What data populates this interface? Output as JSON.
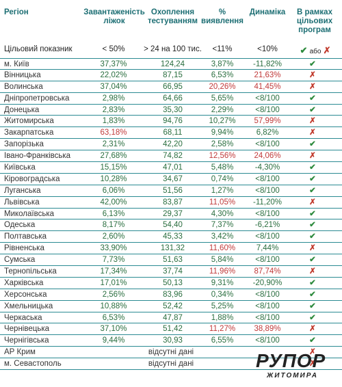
{
  "header": {
    "region": "Регіон",
    "beds_line1": "Завантаженість",
    "beds_line2": "ліжок",
    "test_line1": "Охоплення",
    "test_line2": "тестуванням",
    "pct_line1": "%",
    "pct_line2": "виявлення",
    "dyn": "Динаміка",
    "prog_line1": "В рамках",
    "prog_line2": "цільових",
    "prog_line3": "програм"
  },
  "target": {
    "label": "Цільовий показник",
    "beds": "< 50%",
    "test": "> 24 на 100 тис.",
    "pct": "<11%",
    "dyn": "<10%",
    "check": "✔",
    "or": "або",
    "cross": "✗"
  },
  "colors": {
    "accent": "#1c6e73",
    "good": "#2e8b3e",
    "bad": "#c0392b"
  },
  "rows": [
    {
      "region": "м. Київ",
      "beds": "37,37%",
      "test": "124,24",
      "pct": "3,87%",
      "dyn": "-11,82%",
      "ok": true,
      "beds_bad": false,
      "pct_bad": false,
      "dyn_bad": false
    },
    {
      "region": "Вінницька",
      "beds": "22,02%",
      "test": "87,15",
      "pct": "6,53%",
      "dyn": "21,63%",
      "ok": false,
      "beds_bad": false,
      "pct_bad": false,
      "dyn_bad": true
    },
    {
      "region": "Волинська",
      "beds": "37,04%",
      "test": "66,95",
      "pct": "20,26%",
      "dyn": "41,45%",
      "ok": false,
      "beds_bad": false,
      "pct_bad": true,
      "dyn_bad": true
    },
    {
      "region": "Дніпропетровська",
      "beds": "2,98%",
      "test": "64,66",
      "pct": "5,65%",
      "dyn": "<8/100",
      "ok": true,
      "beds_bad": false,
      "pct_bad": false,
      "dyn_bad": false
    },
    {
      "region": "Донецька",
      "beds": "2,83%",
      "test": "35,30",
      "pct": "2,29%",
      "dyn": "<8/100",
      "ok": true,
      "beds_bad": false,
      "pct_bad": false,
      "dyn_bad": false
    },
    {
      "region": "Житомирська",
      "beds": "1,83%",
      "test": "94,76",
      "pct": "10,27%",
      "dyn": "57,99%",
      "ok": false,
      "beds_bad": false,
      "pct_bad": false,
      "dyn_bad": true
    },
    {
      "region": "Закарпатська",
      "beds": "63,18%",
      "test": "68,11",
      "pct": "9,94%",
      "dyn": "6,82%",
      "ok": false,
      "beds_bad": true,
      "pct_bad": false,
      "dyn_bad": false
    },
    {
      "region": "Запорізька",
      "beds": "2,31%",
      "test": "42,20",
      "pct": "2,58%",
      "dyn": "<8/100",
      "ok": true,
      "beds_bad": false,
      "pct_bad": false,
      "dyn_bad": false
    },
    {
      "region": "Івано-Франківська",
      "beds": "27,68%",
      "test": "74,82",
      "pct": "12,56%",
      "dyn": "24,06%",
      "ok": false,
      "beds_bad": false,
      "pct_bad": true,
      "dyn_bad": true
    },
    {
      "region": "Київська",
      "beds": "15,15%",
      "test": "47,01",
      "pct": "5,48%",
      "dyn": "-4,30%",
      "ok": true,
      "beds_bad": false,
      "pct_bad": false,
      "dyn_bad": false
    },
    {
      "region": "Кіровоградська",
      "beds": "10,28%",
      "test": "34,67",
      "pct": "0,74%",
      "dyn": "<8/100",
      "ok": true,
      "beds_bad": false,
      "pct_bad": false,
      "dyn_bad": false
    },
    {
      "region": "Луганська",
      "beds": "6,06%",
      "test": "51,56",
      "pct": "1,27%",
      "dyn": "<8/100",
      "ok": true,
      "beds_bad": false,
      "pct_bad": false,
      "dyn_bad": false
    },
    {
      "region": "Львівська",
      "beds": "42,00%",
      "test": "83,87",
      "pct": "11,05%",
      "dyn": "-11,20%",
      "ok": false,
      "beds_bad": false,
      "pct_bad": true,
      "dyn_bad": false
    },
    {
      "region": "Миколаївська",
      "beds": "6,13%",
      "test": "29,37",
      "pct": "4,30%",
      "dyn": "<8/100",
      "ok": true,
      "beds_bad": false,
      "pct_bad": false,
      "dyn_bad": false
    },
    {
      "region": "Одеська",
      "beds": "8,17%",
      "test": "54,40",
      "pct": "7,37%",
      "dyn": "-6,21%",
      "ok": true,
      "beds_bad": false,
      "pct_bad": false,
      "dyn_bad": false
    },
    {
      "region": "Полтавська",
      "beds": "2,60%",
      "test": "45,33",
      "pct": "3,42%",
      "dyn": "<8/100",
      "ok": true,
      "beds_bad": false,
      "pct_bad": false,
      "dyn_bad": false
    },
    {
      "region": "Рівненська",
      "beds": "33,90%",
      "test": "131,32",
      "pct": "11,60%",
      "dyn": "7,44%",
      "ok": false,
      "beds_bad": false,
      "pct_bad": true,
      "dyn_bad": false
    },
    {
      "region": "Сумська",
      "beds": "7,73%",
      "test": "51,63",
      "pct": "5,84%",
      "dyn": "<8/100",
      "ok": true,
      "beds_bad": false,
      "pct_bad": false,
      "dyn_bad": false
    },
    {
      "region": "Тернопільська",
      "beds": "17,34%",
      "test": "37,74",
      "pct": "11,96%",
      "dyn": "87,74%",
      "ok": false,
      "beds_bad": false,
      "pct_bad": true,
      "dyn_bad": true
    },
    {
      "region": "Харківська",
      "beds": "17,01%",
      "test": "50,13",
      "pct": "9,31%",
      "dyn": "-20,90%",
      "ok": true,
      "beds_bad": false,
      "pct_bad": false,
      "dyn_bad": false
    },
    {
      "region": "Херсонська",
      "beds": "2,56%",
      "test": "83,96",
      "pct": "0,34%",
      "dyn": "<8/100",
      "ok": true,
      "beds_bad": false,
      "pct_bad": false,
      "dyn_bad": false
    },
    {
      "region": "Хмельницька",
      "beds": "10,88%",
      "test": "52,42",
      "pct": "5,25%",
      "dyn": "<8/100",
      "ok": true,
      "beds_bad": false,
      "pct_bad": false,
      "dyn_bad": false
    },
    {
      "region": "Черкаська",
      "beds": "6,53%",
      "test": "47,87",
      "pct": "1,88%",
      "dyn": "<8/100",
      "ok": true,
      "beds_bad": false,
      "pct_bad": false,
      "dyn_bad": false
    },
    {
      "region": "Чернівецька",
      "beds": "37,10%",
      "test": "51,42",
      "pct": "11,27%",
      "dyn": "38,89%",
      "ok": false,
      "beds_bad": false,
      "pct_bad": true,
      "dyn_bad": true
    },
    {
      "region": "Чернігівська",
      "beds": "9,44%",
      "test": "30,93",
      "pct": "6,55%",
      "dyn": "<8/100",
      "ok": true,
      "beds_bad": false,
      "pct_bad": false,
      "dyn_bad": false
    }
  ],
  "missing": [
    {
      "region": "АР Крим",
      "text": "відсутні дані"
    },
    {
      "region": "м. Севастополь",
      "text": "відсутні дані"
    }
  ],
  "logo": {
    "line1": "РУПОР",
    "line2": "ЖИТОМИРА"
  }
}
